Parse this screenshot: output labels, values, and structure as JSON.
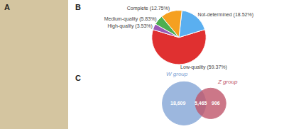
{
  "chart_data": [
    {
      "type": "map",
      "title": "A",
      "color": "#d4c5a0"
    },
    {
      "type": "pie",
      "title": "B",
      "categories": [
        "Low-quality (59.37%)",
        "Not-determined (18.52%)",
        "Complete (12.75%)",
        "Medium-quality (5.83%)",
        "High-quality (3.53%)"
      ],
      "values": [
        59.37,
        18.52,
        12.75,
        5.83,
        3.53
      ],
      "colors": [
        "#e03030",
        "#5aaff0",
        "#f5a020",
        "#4caf50",
        "#9b59b6"
      ]
    },
    {
      "type": "venn",
      "title": "C",
      "series": [
        {
          "name": "W group",
          "color": "#7b9fd4"
        },
        {
          "name": "Z group",
          "color": "#c0566b"
        }
      ],
      "values": [
        18609,
        5465,
        906
      ],
      "value_labels": [
        "18,609",
        "5,465",
        "906"
      ],
      "data_labels": true
    }
  ]
}
